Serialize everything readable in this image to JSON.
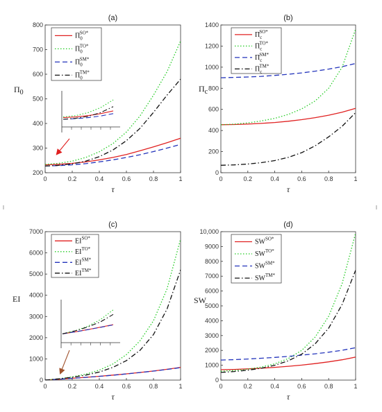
{
  "chart_data": [
    {
      "type": "line",
      "title": "(a)",
      "xlabel": "τ",
      "ylabel": {
        "base": "Π",
        "sub": "0"
      },
      "xlim": [
        0,
        1
      ],
      "ylim": [
        200,
        800
      ],
      "xticks": [
        "0",
        "0.2",
        "0.4",
        "0.6",
        "0.8",
        "1"
      ],
      "yticks": [
        "200",
        "300",
        "400",
        "500",
        "600",
        "700",
        "800"
      ],
      "x": [
        0,
        0.1,
        0.2,
        0.3,
        0.4,
        0.5,
        0.6,
        0.7,
        0.8,
        0.9,
        1.0
      ],
      "legend": "top-left",
      "series": [
        {
          "key": "SO",
          "label": {
            "base": "Π",
            "sub": "0",
            "sup": "SO*"
          },
          "color": "#e02020",
          "dash": "solid",
          "values": [
            232,
            234,
            238,
            244,
            252,
            262,
            274,
            289,
            305,
            322,
            340
          ]
        },
        {
          "key": "TO",
          "label": {
            "base": "Π",
            "sub": "0",
            "sup": "TO*"
          },
          "color": "#22cc22",
          "dash": "dot",
          "values": [
            234,
            238,
            247,
            262,
            285,
            318,
            365,
            430,
            515,
            610,
            735
          ]
        },
        {
          "key": "SM",
          "label": {
            "base": "Π",
            "sub": "0",
            "sup": "SM*"
          },
          "color": "#2233bb",
          "dash": "dash",
          "values": [
            227,
            229,
            232,
            237,
            244,
            252,
            262,
            273,
            286,
            300,
            315
          ]
        },
        {
          "key": "TM",
          "label": {
            "base": "Π",
            "sub": "0",
            "sup": "TM*"
          },
          "color": "#111111",
          "dash": "dashdot",
          "values": [
            227,
            230,
            236,
            247,
            265,
            292,
            330,
            380,
            445,
            515,
            580
          ]
        }
      ],
      "inset": "zoom-near-origin"
    },
    {
      "type": "line",
      "title": "(b)",
      "xlabel": "τ",
      "ylabel": {
        "base": "Π",
        "sub": "c"
      },
      "xlim": [
        0,
        1
      ],
      "ylim": [
        0,
        1400
      ],
      "xticks": [
        "0",
        "0.2",
        "0.4",
        "0.6",
        "0.8",
        "1"
      ],
      "yticks": [
        "0",
        "200",
        "400",
        "600",
        "800",
        "1000",
        "1200",
        "1400"
      ],
      "x": [
        0,
        0.1,
        0.2,
        0.3,
        0.4,
        0.5,
        0.6,
        0.7,
        0.8,
        0.9,
        1.0
      ],
      "legend": "top-left",
      "series": [
        {
          "key": "SO",
          "label": {
            "base": "Π",
            "sub": "c",
            "sup": "SO*"
          },
          "color": "#e02020",
          "dash": "solid",
          "values": [
            455,
            457,
            461,
            467,
            476,
            488,
            503,
            522,
            545,
            574,
            610
          ]
        },
        {
          "key": "TO",
          "label": {
            "base": "Π",
            "sub": "c",
            "sup": "TO*"
          },
          "color": "#22cc22",
          "dash": "dot",
          "values": [
            455,
            460,
            472,
            490,
            515,
            552,
            605,
            680,
            800,
            1000,
            1360
          ]
        },
        {
          "key": "SM",
          "label": {
            "base": "Π",
            "sub": "c",
            "sup": "SM*"
          },
          "color": "#2233bb",
          "dash": "dash",
          "values": [
            900,
            903,
            907,
            913,
            922,
            933,
            946,
            962,
            982,
            1005,
            1035
          ]
        },
        {
          "key": "TM",
          "label": {
            "base": "Π",
            "sub": "c",
            "sup": "TM*"
          },
          "color": "#111111",
          "dash": "dashdot",
          "values": [
            70,
            74,
            82,
            95,
            115,
            145,
            190,
            255,
            340,
            440,
            570
          ]
        }
      ]
    },
    {
      "type": "line",
      "title": "(c)",
      "xlabel": "τ",
      "ylabel": {
        "base": "EI",
        "sub": ""
      },
      "xlim": [
        0,
        1
      ],
      "ylim": [
        0,
        7000
      ],
      "xticks": [
        "0",
        "0.2",
        "0.4",
        "0.6",
        "0.8",
        "1"
      ],
      "yticks": [
        "0",
        "1000",
        "2000",
        "3000",
        "4000",
        "5000",
        "6000",
        "7000"
      ],
      "x": [
        0,
        0.1,
        0.2,
        0.3,
        0.4,
        0.5,
        0.6,
        0.7,
        0.8,
        0.9,
        1.0
      ],
      "legend": "top-left",
      "series": [
        {
          "key": "SO",
          "label": {
            "base": "EI",
            "sub": "",
            "sup": "SO*"
          },
          "color": "#e02020",
          "dash": "solid",
          "values": [
            0,
            40,
            85,
            130,
            180,
            235,
            295,
            360,
            430,
            510,
            600
          ]
        },
        {
          "key": "TO",
          "label": {
            "base": "EI",
            "sub": "",
            "sup": "TO*"
          },
          "color": "#22cc22",
          "dash": "dot",
          "values": [
            0,
            60,
            150,
            280,
            470,
            760,
            1200,
            1850,
            2800,
            4300,
            6650
          ]
        },
        {
          "key": "SM",
          "label": {
            "base": "EI",
            "sub": "",
            "sup": "SM*"
          },
          "color": "#2233bb",
          "dash": "dash",
          "values": [
            0,
            38,
            82,
            128,
            176,
            230,
            290,
            355,
            425,
            505,
            590
          ]
        },
        {
          "key": "TM",
          "label": {
            "base": "EI",
            "sub": "",
            "sup": "TM*"
          },
          "color": "#111111",
          "dash": "dashdot",
          "values": [
            0,
            60,
            135,
            235,
            380,
            600,
            920,
            1400,
            2150,
            3350,
            5200
          ]
        }
      ],
      "inset": "zoom-near-origin"
    },
    {
      "type": "line",
      "title": "(d)",
      "xlabel": "τ",
      "ylabel": {
        "base": "SW",
        "sub": ""
      },
      "xlim": [
        0,
        1
      ],
      "ylim": [
        0,
        10000
      ],
      "xticks": [
        "0",
        "0.2",
        "0.4",
        "0.6",
        "0.8",
        "1"
      ],
      "yticks": [
        "0",
        "1000",
        "2000",
        "3000",
        "4000",
        "5000",
        "6000",
        "7000",
        "8000",
        "9000",
        "10,000"
      ],
      "x": [
        0,
        0.1,
        0.2,
        0.3,
        0.4,
        0.5,
        0.6,
        0.7,
        0.8,
        0.9,
        1.0
      ],
      "legend": "top-left",
      "series": [
        {
          "key": "SO",
          "label": {
            "base": "SW",
            "sub": "",
            "sup": "SO*"
          },
          "color": "#e02020",
          "dash": "solid",
          "values": [
            700,
            720,
            755,
            800,
            860,
            930,
            1010,
            1110,
            1230,
            1370,
            1550
          ]
        },
        {
          "key": "TO",
          "label": {
            "base": "SW",
            "sub": "",
            "sup": "TO*"
          },
          "color": "#22cc22",
          "dash": "dot",
          "values": [
            600,
            650,
            740,
            880,
            1100,
            1450,
            2000,
            2900,
            4300,
            6500,
            9900
          ]
        },
        {
          "key": "SM",
          "label": {
            "base": "SW",
            "sub": "",
            "sup": "SM*"
          },
          "color": "#2233bb",
          "dash": "dash",
          "values": [
            1350,
            1380,
            1420,
            1470,
            1530,
            1600,
            1680,
            1770,
            1880,
            2010,
            2180
          ]
        },
        {
          "key": "TM",
          "label": {
            "base": "SW",
            "sub": "",
            "sup": "TM*"
          },
          "color": "#111111",
          "dash": "dashdot",
          "values": [
            520,
            580,
            670,
            800,
            1000,
            1300,
            1750,
            2450,
            3500,
            5100,
            7400
          ]
        }
      ]
    }
  ]
}
